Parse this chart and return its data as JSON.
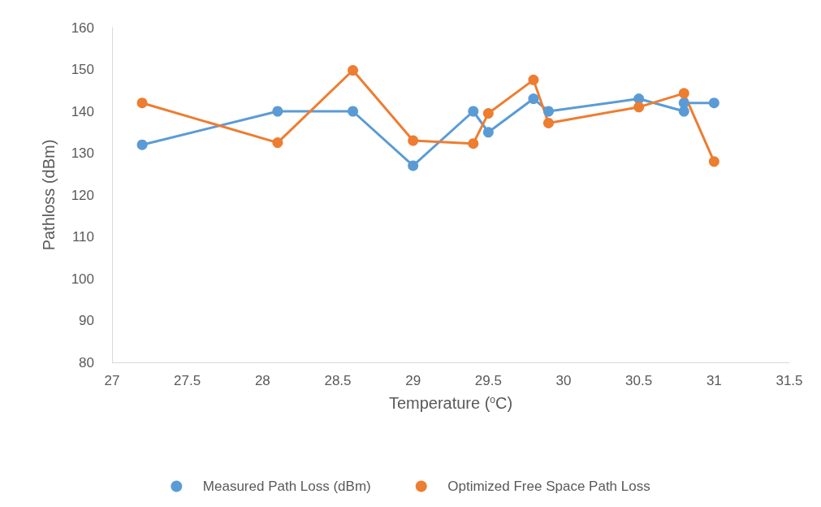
{
  "chart_data": {
    "type": "line",
    "xlabel": "Temperature ($^{o}$C)",
    "ylabel": "Pathloss (dBm)",
    "xlim": [
      27,
      31.5
    ],
    "xticks": [
      27,
      27.5,
      28,
      28.5,
      29,
      29.5,
      30,
      30.5,
      31,
      31.5
    ],
    "ylim": [
      80,
      160
    ],
    "yticks": [
      80,
      90,
      100,
      110,
      120,
      130,
      140,
      150,
      160
    ],
    "grid": false,
    "legend": "bottom",
    "marker": "circle",
    "line_style": "solid",
    "series": [
      {
        "name": "Measured Path Loss (dBm)",
        "color": "#5b9bd5",
        "x": [
          27.2,
          28.1,
          28.6,
          29,
          29.4,
          29.5,
          29.8,
          29.9,
          30.5,
          30.8,
          30.8,
          31
        ],
        "values": [
          132,
          140,
          140,
          127,
          140,
          135,
          143,
          140,
          143,
          140,
          142,
          142
        ]
      },
      {
        "name": "Optimized Free Space Path Loss",
        "color": "#ed7d31",
        "x": [
          27.2,
          28.1,
          28.6,
          29,
          29.4,
          29.5,
          29.8,
          29.9,
          30.5,
          30.8,
          31
        ],
        "values": [
          142,
          132.5,
          149.8,
          133,
          132.3,
          139.5,
          147.5,
          137.2,
          141,
          144.3,
          128
        ]
      }
    ]
  }
}
